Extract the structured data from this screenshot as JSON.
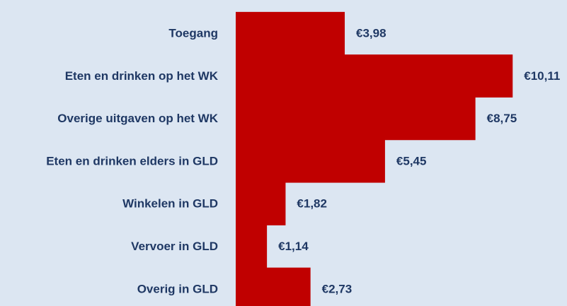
{
  "chart_data": {
    "type": "bar",
    "orientation": "horizontal",
    "categories": [
      "Toegang",
      "Eten en drinken op het WK",
      "Overige uitgaven op het WK",
      "Eten en drinken elders in GLD",
      "Winkelen in GLD",
      "Vervoer in GLD",
      "Overig in GLD"
    ],
    "values": [
      3.98,
      10.11,
      8.75,
      5.45,
      1.82,
      1.14,
      2.73
    ],
    "value_labels": [
      "€3,98",
      "€10,11",
      "€8,75",
      "€5,45",
      "€1,82",
      "€1,14",
      "€2,73"
    ],
    "color": "#c00000"
  }
}
